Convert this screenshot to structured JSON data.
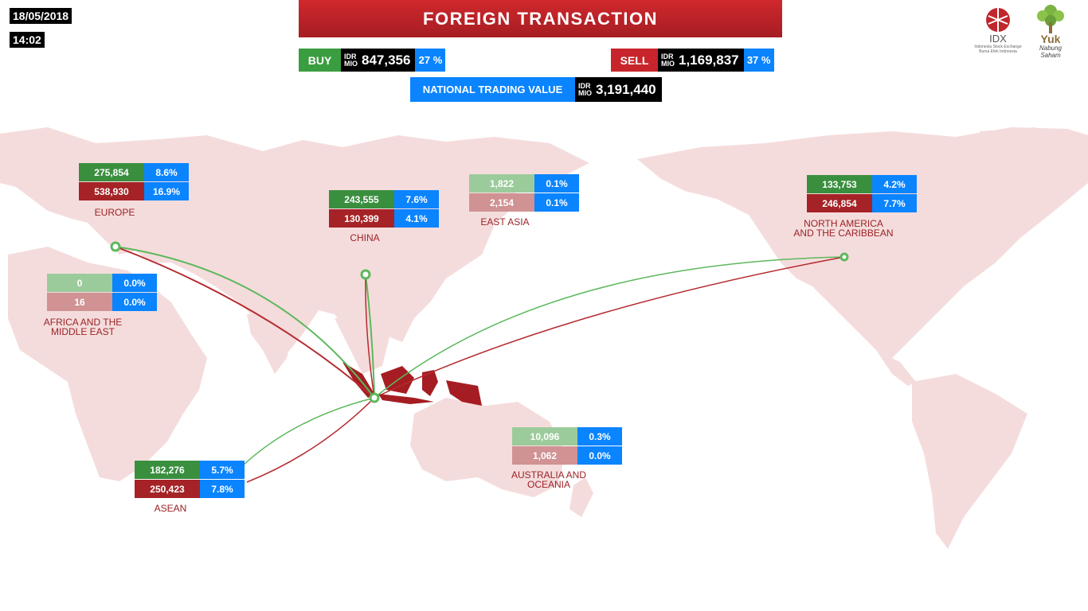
{
  "header": {
    "date": "18/05/2018",
    "time": "14:02",
    "title": "FOREIGN TRANSACTION",
    "idr_line1": "IDR",
    "idr_line2": "MIO"
  },
  "buy": {
    "label": "BUY",
    "value": "847,356",
    "pct": "27 %"
  },
  "sell": {
    "label": "SELL",
    "value": "1,169,837",
    "pct": "37 %"
  },
  "national": {
    "label": "NATIONAL TRADING VALUE",
    "value": "3,191,440"
  },
  "logos": {
    "idx_text": "IDX",
    "idx_sub1": "Indonesia Stock Exchange",
    "idx_sub2": "Bursa Efek Indonesia",
    "yuk_text": "Yuk",
    "yuk_sub1": "Nabung",
    "yuk_sub2": "Saham"
  },
  "regions": [
    {
      "name": "EUROPE",
      "buy": "275,854",
      "buy_pct": "8.6%",
      "sell": "538,930",
      "sell_pct": "16.9%"
    },
    {
      "name": "CHINA",
      "buy": "243,555",
      "buy_pct": "7.6%",
      "sell": "130,399",
      "sell_pct": "4.1%"
    },
    {
      "name": "EAST ASIA",
      "buy": "1,822",
      "buy_pct": "0.1%",
      "sell": "2,154",
      "sell_pct": "0.1%"
    },
    {
      "name_line1": "NORTH AMERICA",
      "name_line2": "AND THE CARIBBEAN",
      "buy": "133,753",
      "buy_pct": "4.2%",
      "sell": "246,854",
      "sell_pct": "7.7%"
    },
    {
      "name_line1": "AFRICA AND THE",
      "name_line2": "MIDDLE EAST",
      "buy": "0",
      "buy_pct": "0.0%",
      "sell": "16",
      "sell_pct": "0.0%"
    },
    {
      "name_line1": "AUSTRALIA AND",
      "name_line2": "OCEANIA",
      "buy": "10,096",
      "buy_pct": "0.3%",
      "sell": "1,062",
      "sell_pct": "0.0%"
    },
    {
      "name": "ASEAN",
      "buy": "182,276",
      "buy_pct": "5.7%",
      "sell": "250,423",
      "sell_pct": "7.8%"
    }
  ],
  "colors": {
    "buy": "#3a8f3f",
    "sell": "#a52327",
    "pct": "#0a84ff",
    "title": "#c0272d",
    "map_land": "#f5dcdc",
    "indonesia": "#a51d22"
  }
}
